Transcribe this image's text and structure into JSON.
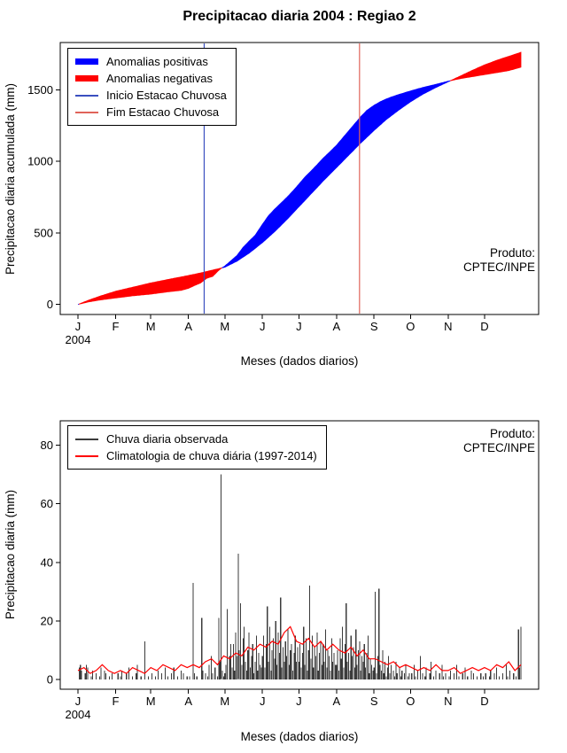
{
  "chart_data": [
    {
      "type": "area",
      "title": "Precipitacao diaria 2004 : Regiao 2",
      "xlabel": "Meses (dados diarios)",
      "ylabel": "Precipitacao diaria acumulada (mm)",
      "xlim": [
        1,
        366
      ],
      "ylim": [
        0,
        1760
      ],
      "yticks": [
        0,
        500,
        1000,
        1500
      ],
      "month_ticks": {
        "labels": [
          "J",
          "F",
          "M",
          "A",
          "M",
          "J",
          "J",
          "A",
          "S",
          "O",
          "N",
          "D"
        ],
        "days": [
          1,
          32,
          61,
          92,
          122,
          153,
          183,
          214,
          245,
          275,
          306,
          336
        ]
      },
      "year_label": "2004",
      "legend": [
        {
          "label": "Anomalias positivas",
          "color": "#0000FF",
          "lw": 7
        },
        {
          "label": "Anomalias negativas",
          "color": "#FF0000",
          "lw": 7
        },
        {
          "label": "Inicio Estacao Chuvosa",
          "color": "#3A4FC0",
          "lw": 1
        },
        {
          "label": "Fim Estacao Chuvosa",
          "color": "#E0635A",
          "lw": 1
        }
      ],
      "vlines": [
        {
          "label": "Inicio Estacao Chuvosa",
          "day": 105,
          "color": "#3A4FC0"
        },
        {
          "label": "Fim Estacao Chuvosa",
          "day": 233,
          "color": "#E0635A"
        }
      ],
      "colors": {
        "positive": "#0000FF",
        "negative": "#FF0000"
      },
      "series": [
        {
          "name": "observado_acumulado",
          "points": [
            [
              1,
              0
            ],
            [
              10,
              18
            ],
            [
              20,
              32
            ],
            [
              32,
              45
            ],
            [
              46,
              60
            ],
            [
              61,
              72
            ],
            [
              75,
              88
            ],
            [
              86,
              98
            ],
            [
              92,
              112
            ],
            [
              97,
              132
            ],
            [
              102,
              150
            ],
            [
              107,
              182
            ],
            [
              112,
              196
            ],
            [
              117,
              238
            ],
            [
              120,
              258
            ],
            [
              122,
              268
            ],
            [
              127,
              305
            ],
            [
              132,
              342
            ],
            [
              137,
              398
            ],
            [
              142,
              442
            ],
            [
              147,
              483
            ],
            [
              153,
              560
            ],
            [
              158,
              620
            ],
            [
              163,
              665
            ],
            [
              168,
              706
            ],
            [
              173,
              747
            ],
            [
              178,
              792
            ],
            [
              183,
              840
            ],
            [
              188,
              890
            ],
            [
              193,
              932
            ],
            [
              198,
              976
            ],
            [
              203,
              1022
            ],
            [
              208,
              1062
            ],
            [
              214,
              1112
            ],
            [
              219,
              1162
            ],
            [
              224,
              1212
            ],
            [
              229,
              1262
            ],
            [
              234,
              1312
            ],
            [
              239,
              1356
            ],
            [
              245,
              1392
            ],
            [
              250,
              1416
            ],
            [
              255,
              1436
            ],
            [
              260,
              1452
            ],
            [
              265,
              1466
            ],
            [
              275,
              1492
            ],
            [
              285,
              1516
            ],
            [
              295,
              1536
            ],
            [
              306,
              1560
            ],
            [
              316,
              1578
            ],
            [
              326,
              1592
            ],
            [
              336,
              1606
            ],
            [
              346,
              1620
            ],
            [
              356,
              1634
            ],
            [
              366,
              1658
            ]
          ]
        },
        {
          "name": "climatologia_acumulada",
          "points": [
            [
              1,
              0
            ],
            [
              10,
              30
            ],
            [
              20,
              60
            ],
            [
              32,
              92
            ],
            [
              46,
              120
            ],
            [
              61,
              150
            ],
            [
              75,
              174
            ],
            [
              92,
              202
            ],
            [
              102,
              220
            ],
            [
              112,
              240
            ],
            [
              122,
              260
            ],
            [
              132,
              302
            ],
            [
              142,
              358
            ],
            [
              153,
              432
            ],
            [
              163,
              508
            ],
            [
              173,
              592
            ],
            [
              183,
              682
            ],
            [
              193,
              772
            ],
            [
              203,
              862
            ],
            [
              214,
              956
            ],
            [
              224,
              1042
            ],
            [
              234,
              1128
            ],
            [
              245,
              1216
            ],
            [
              255,
              1292
            ],
            [
              265,
              1356
            ],
            [
              275,
              1416
            ],
            [
              285,
              1468
            ],
            [
              295,
              1512
            ],
            [
              306,
              1556
            ],
            [
              316,
              1596
            ],
            [
              326,
              1636
            ],
            [
              336,
              1674
            ],
            [
              346,
              1706
            ],
            [
              356,
              1734
            ],
            [
              366,
              1762
            ]
          ]
        }
      ],
      "product_label": {
        "line1": "Produto:",
        "line2": "CPTEC/INPE"
      }
    },
    {
      "type": "bar",
      "xlabel": "Meses (dados diarios)",
      "ylabel": "Precipitacao diaria (mm)",
      "xlim": [
        1,
        366
      ],
      "ylim": [
        0,
        85
      ],
      "yticks": [
        0,
        20,
        40,
        60,
        80
      ],
      "month_ticks": {
        "labels": [
          "J",
          "F",
          "M",
          "A",
          "M",
          "J",
          "J",
          "A",
          "S",
          "O",
          "N",
          "D"
        ],
        "days": [
          1,
          32,
          61,
          92,
          122,
          153,
          183,
          214,
          245,
          275,
          306,
          336
        ]
      },
      "year_label": "2004",
      "legend": [
        {
          "label": "Chuva diaria observada",
          "color": "#3B3B3B",
          "lw": 1
        },
        {
          "label": "Climatologia de chuva diária (1997-2014)",
          "color": "#FF0000",
          "lw": 1
        }
      ],
      "bar_color": "#3B3B3B",
      "bars": [
        0,
        4,
        5,
        3,
        0,
        0,
        2,
        5,
        4,
        0,
        0,
        1,
        3,
        0,
        0,
        2,
        0,
        0,
        1,
        4,
        0,
        0,
        3,
        2,
        0,
        0,
        1,
        0,
        2,
        0,
        0,
        0,
        0,
        2,
        0,
        1,
        3,
        0,
        0,
        0,
        2,
        0,
        4,
        0,
        0,
        1,
        0,
        0,
        2,
        5,
        0,
        0,
        1,
        0,
        0,
        13,
        0,
        0,
        1,
        0,
        0,
        2,
        0,
        0,
        1,
        0,
        3,
        0,
        0,
        2,
        0,
        0,
        4,
        0,
        1,
        0,
        0,
        2,
        0,
        4,
        0,
        0,
        1,
        0,
        0,
        3,
        0,
        2,
        0,
        0,
        1,
        0,
        1,
        0,
        0,
        33,
        2,
        0,
        1,
        0,
        0,
        0,
        21,
        3,
        0,
        2,
        0,
        1,
        5,
        0,
        8,
        2,
        0,
        4,
        0,
        1,
        21,
        6,
        70,
        3,
        1,
        2,
        5,
        24,
        0,
        8,
        12,
        4,
        12,
        3,
        16,
        8,
        43,
        10,
        26,
        5,
        14,
        18,
        6,
        3,
        10,
        16,
        4,
        8,
        12,
        2,
        6,
        15,
        3,
        9,
        5,
        4,
        8,
        15,
        4,
        12,
        25,
        6,
        18,
        3,
        10,
        14,
        7,
        20,
        5,
        16,
        9,
        28,
        4,
        11,
        6,
        13,
        8,
        17,
        5,
        10,
        12,
        3,
        9,
        15,
        6,
        11,
        6,
        12,
        4,
        9,
        18,
        5,
        14,
        3,
        10,
        32,
        7,
        15,
        4,
        11,
        8,
        16,
        3,
        9,
        13,
        5,
        12,
        6,
        17,
        4,
        10,
        8,
        3,
        14,
        6,
        9,
        5,
        5,
        10,
        3,
        14,
        7,
        18,
        4,
        12,
        26,
        6,
        9,
        3,
        15,
        8,
        11,
        4,
        17,
        5,
        10,
        13,
        3,
        8,
        6,
        12,
        4,
        9,
        15,
        2,
        7,
        5,
        3,
        4,
        30,
        2,
        8,
        31,
        5,
        3,
        10,
        2,
        6,
        1,
        4,
        8,
        2,
        5,
        0,
        3,
        1,
        6,
        2,
        0,
        4,
        1,
        3,
        0,
        2,
        5,
        0,
        1,
        2,
        0,
        2,
        0,
        5,
        1,
        0,
        3,
        0,
        8,
        0,
        2,
        0,
        1,
        4,
        0,
        0,
        2,
        6,
        0,
        1,
        0,
        3,
        0,
        0,
        2,
        0,
        5,
        1,
        0,
        2,
        0,
        0,
        1,
        3,
        0,
        0,
        2,
        0,
        5,
        0,
        1,
        0,
        0,
        2,
        0,
        4,
        0,
        1,
        0,
        0,
        3,
        0,
        2,
        0,
        0,
        1,
        0,
        0,
        2,
        0,
        1,
        0,
        2,
        0,
        0,
        1,
        3,
        0,
        0,
        2,
        0,
        4,
        0,
        1,
        0,
        0,
        2,
        0,
        0,
        5,
        1,
        0,
        3,
        0,
        0,
        2,
        0,
        1,
        0,
        17,
        4,
        18
      ],
      "climatology": {
        "name": "climatologia_diaria",
        "color": "#FF0000",
        "points": [
          [
            1,
            3
          ],
          [
            6,
            4
          ],
          [
            11,
            2
          ],
          [
            16,
            3
          ],
          [
            21,
            5
          ],
          [
            26,
            3
          ],
          [
            31,
            2
          ],
          [
            36,
            3
          ],
          [
            41,
            2
          ],
          [
            46,
            4
          ],
          [
            51,
            3
          ],
          [
            56,
            2
          ],
          [
            61,
            4
          ],
          [
            66,
            3
          ],
          [
            71,
            5
          ],
          [
            76,
            4
          ],
          [
            81,
            3
          ],
          [
            86,
            5
          ],
          [
            91,
            4
          ],
          [
            96,
            5
          ],
          [
            101,
            4
          ],
          [
            106,
            6
          ],
          [
            111,
            7
          ],
          [
            116,
            5
          ],
          [
            121,
            8
          ],
          [
            126,
            7
          ],
          [
            131,
            9
          ],
          [
            136,
            8
          ],
          [
            141,
            11
          ],
          [
            146,
            10
          ],
          [
            151,
            12
          ],
          [
            156,
            11
          ],
          [
            161,
            13
          ],
          [
            166,
            12
          ],
          [
            171,
            16
          ],
          [
            176,
            18
          ],
          [
            181,
            13
          ],
          [
            186,
            12
          ],
          [
            191,
            14
          ],
          [
            196,
            11
          ],
          [
            201,
            13
          ],
          [
            206,
            10
          ],
          [
            211,
            12
          ],
          [
            216,
            10
          ],
          [
            221,
            9
          ],
          [
            226,
            11
          ],
          [
            231,
            8
          ],
          [
            236,
            10
          ],
          [
            241,
            7
          ],
          [
            246,
            7
          ],
          [
            251,
            6
          ],
          [
            256,
            5
          ],
          [
            261,
            6
          ],
          [
            266,
            4
          ],
          [
            271,
            5
          ],
          [
            276,
            4
          ],
          [
            281,
            3
          ],
          [
            286,
            4
          ],
          [
            291,
            3
          ],
          [
            296,
            5
          ],
          [
            301,
            3
          ],
          [
            306,
            3
          ],
          [
            311,
            4
          ],
          [
            316,
            2
          ],
          [
            321,
            3
          ],
          [
            326,
            4
          ],
          [
            331,
            3
          ],
          [
            336,
            4
          ],
          [
            341,
            3
          ],
          [
            346,
            5
          ],
          [
            351,
            4
          ],
          [
            356,
            6
          ],
          [
            361,
            3
          ],
          [
            366,
            5
          ]
        ]
      },
      "product_label": {
        "line1": "Produto:",
        "line2": "CPTEC/INPE"
      }
    }
  ]
}
